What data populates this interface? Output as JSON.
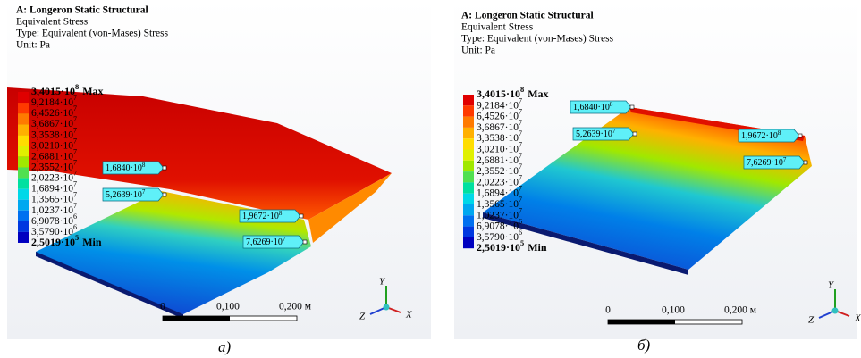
{
  "panels": [
    {
      "header": {
        "title": "A: Longeron Static Structural",
        "result": "Equivalent Stress",
        "type": "Type: Equivalent (von-Mases) Stress",
        "unit": "Unit: Pa"
      },
      "legend": {
        "entries": [
          {
            "text": "3,4015·10",
            "exp": "8",
            "note": "Max"
          },
          {
            "text": "9,2184·10",
            "exp": "7"
          },
          {
            "text": "6,4526·10",
            "exp": "7"
          },
          {
            "text": "3,6867·10",
            "exp": "7"
          },
          {
            "text": "3,3538·10",
            "exp": "7"
          },
          {
            "text": "3,0210·10",
            "exp": "7"
          },
          {
            "text": "2,6881·10",
            "exp": "7"
          },
          {
            "text": "2,3552·10",
            "exp": "7"
          },
          {
            "text": "2,0223·10",
            "exp": "7"
          },
          {
            "text": "1,6894·10",
            "exp": "7"
          },
          {
            "text": "1,3565·10",
            "exp": "7"
          },
          {
            "text": "1,0237·10",
            "exp": "7"
          },
          {
            "text": "6,9078·10",
            "exp": "6"
          },
          {
            "text": "3,5790·10",
            "exp": "6"
          },
          {
            "text": "2,5019·10",
            "exp": "5",
            "note": "Min"
          }
        ],
        "colors": [
          "#e00000",
          "#ff3a00",
          "#ff7a00",
          "#ffb000",
          "#ffdd00",
          "#e0f000",
          "#a0e800",
          "#50e050",
          "#00e0a0",
          "#00d8e8",
          "#00a8f0",
          "#0070f0",
          "#0038e0",
          "#0000c0"
        ]
      },
      "probes": [
        {
          "text": "1,6840·10",
          "exp": "8"
        },
        {
          "text": "5,2639·10",
          "exp": "7"
        },
        {
          "text": "1,9672·10",
          "exp": "8"
        },
        {
          "text": "7,6269·10",
          "exp": "7"
        }
      ],
      "scale": [
        "0",
        "0,100",
        "0,200 м"
      ],
      "axes": [
        "Y",
        "Z",
        "X"
      ],
      "caption": "а)"
    },
    {
      "header": {
        "title": "A: Longeron Static Structural",
        "result": "Equivalent Stress",
        "type": "Type: Equivalent (von-Mases) Stress",
        "unit": "Unit: Pa"
      },
      "legend": {
        "entries": [
          {
            "text": "3,4015·10",
            "exp": "8",
            "note": "Max"
          },
          {
            "text": "9,2184·10",
            "exp": "7"
          },
          {
            "text": "6,4526·10",
            "exp": "7"
          },
          {
            "text": "3,6867·10",
            "exp": "7"
          },
          {
            "text": "3,3538·10",
            "exp": "7"
          },
          {
            "text": "3,0210·10",
            "exp": "7"
          },
          {
            "text": "2,6881·10",
            "exp": "7"
          },
          {
            "text": "2,3552·10",
            "exp": "7"
          },
          {
            "text": "2,0223·10",
            "exp": "7"
          },
          {
            "text": "1,6894·10",
            "exp": "7"
          },
          {
            "text": "1,3565·10",
            "exp": "7"
          },
          {
            "text": "1,0237·10",
            "exp": "7"
          },
          {
            "text": "6,9078·10",
            "exp": "6"
          },
          {
            "text": "3,5790·10",
            "exp": "6"
          },
          {
            "text": "2,5019·10",
            "exp": "5",
            "note": "Min"
          }
        ],
        "colors": [
          "#e00000",
          "#ff3a00",
          "#ff7a00",
          "#ffb000",
          "#ffdd00",
          "#e0f000",
          "#a0e800",
          "#50e050",
          "#00e0a0",
          "#00d8e8",
          "#00a8f0",
          "#0070f0",
          "#0038e0",
          "#0000c0"
        ]
      },
      "probes": [
        {
          "text": "1,6840·10",
          "exp": "8"
        },
        {
          "text": "5,2639·10",
          "exp": "7"
        },
        {
          "text": "1,9672·10",
          "exp": "8"
        },
        {
          "text": "7,6269·10",
          "exp": "7"
        }
      ],
      "scale": [
        "0",
        "0,100",
        "0,200 м"
      ],
      "axes": [
        "Y",
        "Z",
        "X"
      ],
      "caption": "б)"
    }
  ]
}
